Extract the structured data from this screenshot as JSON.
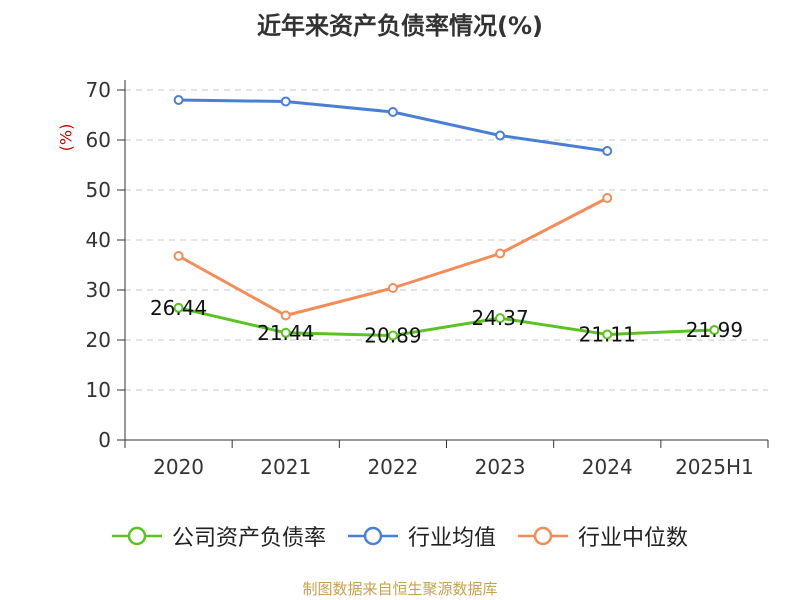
{
  "chart_data": {
    "type": "line",
    "title": "近年来资产负债率情况(%)",
    "ylabel": "(%)",
    "xlabel": "",
    "categories": [
      "2020",
      "2021",
      "2022",
      "2023",
      "2024",
      "2025H1"
    ],
    "ylim": [
      0,
      70
    ],
    "yticks": [
      0,
      10,
      20,
      30,
      40,
      50,
      60,
      70
    ],
    "grid": true,
    "legend_position": "bottom",
    "series": [
      {
        "name": "公司资产负债率",
        "color": "#5ac320",
        "values": [
          26.44,
          21.44,
          20.89,
          24.37,
          21.11,
          21.99
        ],
        "labels": [
          "26.44",
          "21.44",
          "20.89",
          "24.37",
          "21.11",
          "21.99"
        ]
      },
      {
        "name": "行业均值",
        "color": "#4a7fd6",
        "values": [
          68.0,
          67.7,
          65.6,
          60.9,
          57.8,
          null
        ]
      },
      {
        "name": "行业中位数",
        "color": "#f28c58",
        "values": [
          36.8,
          24.9,
          30.4,
          37.3,
          48.4,
          null
        ]
      }
    ]
  },
  "source": "制图数据来自恒生聚源数据库"
}
